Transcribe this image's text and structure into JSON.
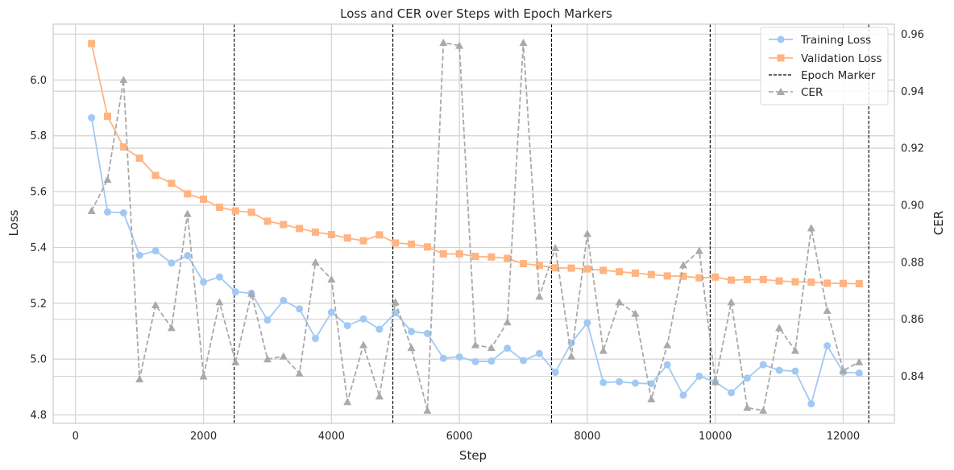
{
  "chart_data": {
    "type": "line",
    "title": "Loss and CER over Steps with Epoch Markers",
    "xlabel": "Step",
    "ylabel_left": "Loss",
    "ylabel_right": "CER",
    "xlim": [
      -350,
      12800
    ],
    "ylim_left": [
      4.77,
      6.2
    ],
    "ylim_right": [
      0.8235,
      0.9635
    ],
    "x_ticks": [
      0,
      2000,
      4000,
      6000,
      8000,
      10000,
      12000
    ],
    "y_left_ticks": [
      4.8,
      5.0,
      5.2,
      5.4,
      5.6,
      5.8,
      6.0
    ],
    "y_right_ticks": [
      0.84,
      0.86,
      0.88,
      0.9,
      0.92,
      0.94,
      0.96
    ],
    "grid": true,
    "legend_position": "top-right",
    "colors": {
      "training": "#a1c9f4",
      "validation": "#ffb482",
      "epoch": "#000000",
      "cer": "#a9a9a9",
      "grid": "#d3d3d3",
      "spine": "#cccccc"
    },
    "steps": [
      250,
      500,
      750,
      1000,
      1250,
      1500,
      1750,
      2000,
      2250,
      2500,
      2750,
      3000,
      3250,
      3500,
      3750,
      4000,
      4250,
      4500,
      4750,
      5000,
      5250,
      5500,
      5750,
      6000,
      6250,
      6500,
      6750,
      7000,
      7250,
      7500,
      7750,
      8000,
      8250,
      8500,
      8750,
      9000,
      9250,
      9500,
      9750,
      10000,
      10250,
      10500,
      10750,
      11000,
      11250,
      11500,
      11750,
      12000,
      12250
    ],
    "series": [
      {
        "name": "Training Loss",
        "axis": "left",
        "marker": "circle",
        "style": "solid",
        "values": [
          5.865,
          5.527,
          5.524,
          5.372,
          5.388,
          5.344,
          5.371,
          5.276,
          5.294,
          5.241,
          5.236,
          5.14,
          5.21,
          5.18,
          5.074,
          5.168,
          5.12,
          5.144,
          5.107,
          5.166,
          5.099,
          5.092,
          5.003,
          5.008,
          4.991,
          4.993,
          5.039,
          4.995,
          5.02,
          4.953,
          5.058,
          5.13,
          4.916,
          4.919,
          4.914,
          4.912,
          4.98,
          4.871,
          4.939,
          4.918,
          4.88,
          4.932,
          4.98,
          4.96,
          4.957,
          4.84,
          5.048,
          4.953,
          4.95
        ]
      },
      {
        "name": "Validation Loss",
        "axis": "left",
        "marker": "square",
        "style": "solid",
        "values": [
          6.13,
          5.87,
          5.76,
          5.72,
          5.658,
          5.63,
          5.592,
          5.573,
          5.544,
          5.531,
          5.526,
          5.494,
          5.482,
          5.468,
          5.455,
          5.446,
          5.434,
          5.424,
          5.445,
          5.416,
          5.412,
          5.402,
          5.377,
          5.377,
          5.368,
          5.366,
          5.361,
          5.342,
          5.336,
          5.327,
          5.326,
          5.323,
          5.318,
          5.313,
          5.308,
          5.303,
          5.298,
          5.297,
          5.291,
          5.294,
          5.283,
          5.285,
          5.285,
          5.28,
          5.277,
          5.276,
          5.272,
          5.271,
          5.27
        ]
      },
      {
        "name": "CER",
        "axis": "right",
        "marker": "triangle",
        "style": "dashed",
        "values": [
          0.898,
          0.909,
          0.944,
          0.839,
          0.865,
          0.857,
          0.897,
          0.84,
          0.866,
          0.845,
          0.869,
          0.846,
          0.847,
          0.841,
          0.88,
          0.874,
          0.831,
          0.851,
          0.833,
          0.866,
          0.85,
          0.828,
          0.957,
          0.956,
          0.851,
          0.85,
          0.859,
          0.957,
          0.868,
          0.885,
          0.847,
          0.89,
          0.849,
          0.866,
          0.862,
          0.832,
          0.851,
          0.879,
          0.884,
          0.838,
          0.866,
          0.829,
          0.828,
          0.857,
          0.849,
          0.892,
          0.863,
          0.842,
          0.845
        ]
      }
    ],
    "epoch_markers": {
      "name": "Epoch Marker",
      "style": "dashed",
      "x": [
        2480,
        4960,
        7440,
        9920,
        12400
      ]
    }
  }
}
